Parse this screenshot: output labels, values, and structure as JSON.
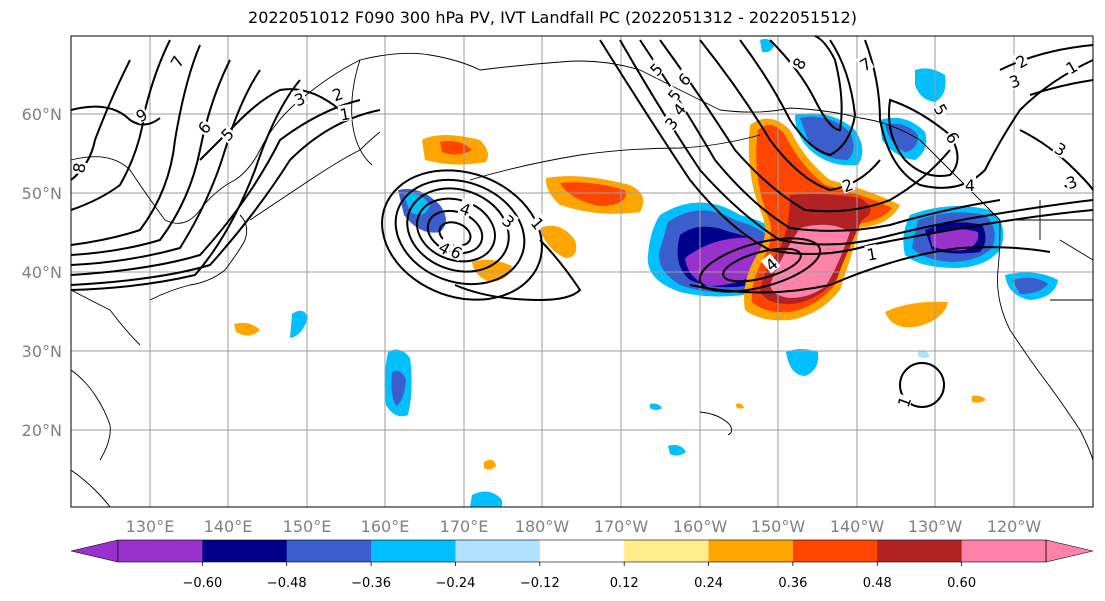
{
  "title": "2022051012 F090 300 hPa PV, IVT Landfall PC (2022051312 - 2022051512)",
  "lon_labels": [
    "130°E",
    "140°E",
    "150°E",
    "160°E",
    "170°E",
    "180°W",
    "170°W",
    "160°W",
    "150°W",
    "140°W",
    "130°W",
    "120°W"
  ],
  "lat_labels": [
    "60°N",
    "50°N",
    "40°N",
    "30°N",
    "20°N"
  ],
  "contour_labels": [
    "7",
    "9",
    "6",
    "5",
    "3",
    "2",
    "1",
    "8",
    "4",
    "6",
    "4",
    "3",
    "5",
    "6",
    "1",
    "4",
    "8",
    "7",
    "5",
    "4",
    "3",
    "3",
    "2",
    "1",
    "2",
    "5",
    "6",
    "4",
    "3",
    "2",
    "3",
    "1",
    "1"
  ],
  "colorbar": {
    "colors": [
      "#9932cc",
      "#00008b",
      "#3a5fcd",
      "#00bfff",
      "#b0e2ff",
      "#ffffff",
      "#ffec8b",
      "#ffa500",
      "#ff4500",
      "#b22222",
      "#ff82ab"
    ],
    "labels": [
      "−0.60",
      "−0.48",
      "−0.36",
      "−0.24",
      "−0.12",
      "0.12",
      "0.24",
      "0.36",
      "0.48",
      "0.60"
    ]
  }
}
